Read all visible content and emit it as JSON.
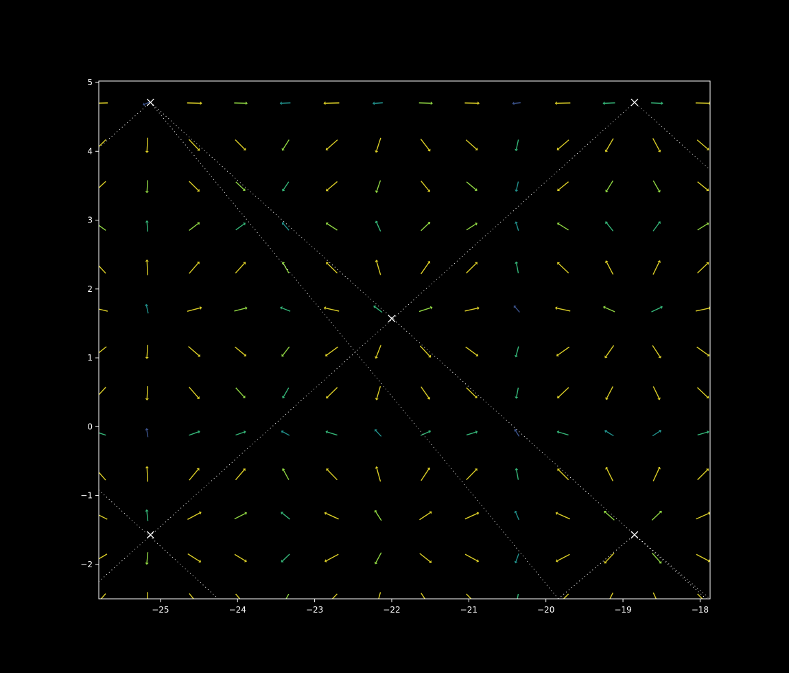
{
  "chart_data": {
    "type": "quiver",
    "title": "",
    "xlabel": "",
    "ylabel": "",
    "xlim": [
      -25.8,
      -17.87
    ],
    "ylim": [
      -2.5,
      5.02
    ],
    "grid": false,
    "background": "#000000",
    "axis_color": "#ffffff",
    "x_ticks": [
      -25,
      -24,
      -23,
      -22,
      -21,
      -20,
      -19,
      -18
    ],
    "x_tick_labels": [
      "−25",
      "−24",
      "−23",
      "−22",
      "−21",
      "−20",
      "−19",
      "−18"
    ],
    "y_ticks": [
      -2,
      -1,
      0,
      1,
      2,
      3,
      4,
      5
    ],
    "y_tick_labels": [
      "−2",
      "−1",
      "0",
      "1",
      "2",
      "3",
      "4",
      "5"
    ],
    "field": {
      "description": "gradient-like vector field, periodic with period pi in x and y",
      "x0": -22.0,
      "y0": 1.57,
      "period": 3.14159,
      "grid_x": [
        -25.77,
        -25.17,
        -24.57,
        -23.97,
        -23.37,
        -22.77,
        -22.17,
        -21.57,
        -20.97,
        -20.37,
        -19.77,
        -19.17,
        -18.57,
        -17.97
      ],
      "grid_y": [
        -2.5,
        -1.9,
        -1.3,
        -0.7,
        -0.1,
        0.5,
        1.1,
        1.7,
        2.3,
        2.9,
        3.5,
        4.1,
        4.7
      ],
      "colormap": [
        "#3b528b",
        "#21918c",
        "#35b779",
        "#90d743",
        "#dccf27"
      ]
    },
    "lines": {
      "color": "#ffffff",
      "style": "dotted",
      "segments": [
        [
          [
            -25.8,
            4.05
          ],
          [
            -25.13,
            4.71
          ],
          [
            -19.84,
            -2.5
          ]
        ],
        [
          [
            -25.8,
            -0.92
          ],
          [
            -24.25,
            -2.5
          ]
        ],
        [
          [
            -25.8,
            -2.25
          ],
          [
            -18.85,
            4.71
          ],
          [
            -17.87,
            3.73
          ]
        ],
        [
          [
            -25.13,
            4.71
          ],
          [
            -17.87,
            -2.55
          ]
        ],
        [
          [
            -19.84,
            -2.5
          ],
          [
            -18.85,
            -1.57
          ],
          [
            -17.87,
            -2.5
          ]
        ]
      ]
    },
    "critical_points": [
      [
        -25.13,
        4.71
      ],
      [
        -18.85,
        4.71
      ],
      [
        -22.0,
        1.57
      ],
      [
        -25.13,
        -1.57
      ],
      [
        -18.85,
        -1.57
      ]
    ]
  }
}
